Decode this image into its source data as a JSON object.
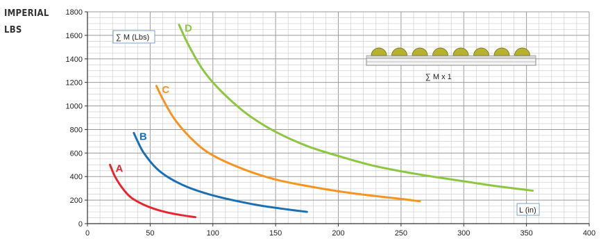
{
  "unit_title": {
    "line1": "IMPERIAL",
    "line2": "LBS"
  },
  "chart_data": {
    "type": "line",
    "title": "",
    "ylabel": "∑ M (Lbs)",
    "xlabel": "L (in)",
    "xlim": [
      0,
      400
    ],
    "ylim": [
      0,
      1800
    ],
    "xticks": [
      0,
      50,
      100,
      150,
      200,
      250,
      300,
      350,
      400
    ],
    "yticks": [
      0,
      200,
      400,
      600,
      800,
      1000,
      1200,
      1400,
      1600,
      1800
    ],
    "x_minor_step": 10,
    "y_minor_step": 50,
    "grid": true,
    "inset_label": "∑ M x 1",
    "series": [
      {
        "name": "A",
        "color": "#e8262f",
        "points": [
          [
            18,
            500
          ],
          [
            22,
            400
          ],
          [
            28,
            300
          ],
          [
            35,
            220
          ],
          [
            45,
            160
          ],
          [
            55,
            120
          ],
          [
            65,
            92
          ],
          [
            75,
            72
          ],
          [
            86,
            55
          ]
        ]
      },
      {
        "name": "B",
        "color": "#1a6fb5",
        "points": [
          [
            37,
            770
          ],
          [
            40,
            700
          ],
          [
            45,
            600
          ],
          [
            55,
            470
          ],
          [
            65,
            390
          ],
          [
            80,
            310
          ],
          [
            100,
            240
          ],
          [
            120,
            190
          ],
          [
            140,
            150
          ],
          [
            160,
            120
          ],
          [
            175,
            100
          ]
        ]
      },
      {
        "name": "C",
        "color": "#f7941d",
        "points": [
          [
            55,
            1170
          ],
          [
            60,
            1060
          ],
          [
            70,
            880
          ],
          [
            85,
            700
          ],
          [
            100,
            580
          ],
          [
            125,
            460
          ],
          [
            150,
            375
          ],
          [
            175,
            320
          ],
          [
            200,
            275
          ],
          [
            225,
            240
          ],
          [
            250,
            210
          ],
          [
            265,
            190
          ]
        ]
      },
      {
        "name": "D",
        "color": "#8dc63f",
        "points": [
          [
            73,
            1690
          ],
          [
            80,
            1530
          ],
          [
            90,
            1340
          ],
          [
            100,
            1200
          ],
          [
            115,
            1040
          ],
          [
            130,
            910
          ],
          [
            150,
            780
          ],
          [
            175,
            660
          ],
          [
            200,
            575
          ],
          [
            225,
            500
          ],
          [
            250,
            445
          ],
          [
            275,
            400
          ],
          [
            300,
            360
          ],
          [
            325,
            320
          ],
          [
            355,
            280
          ]
        ]
      }
    ]
  }
}
